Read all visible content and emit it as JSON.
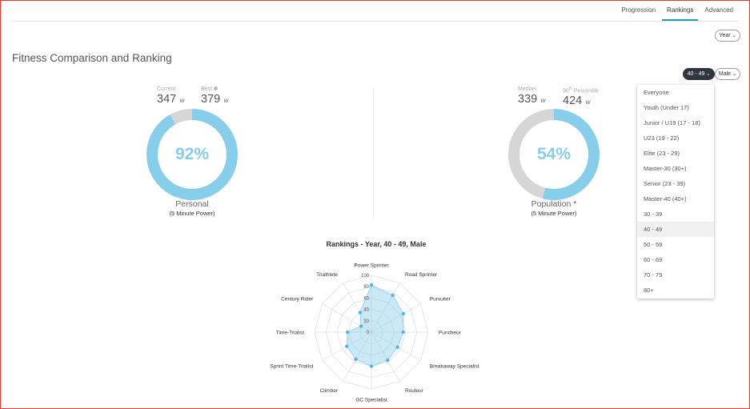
{
  "nav": {
    "tabs": [
      {
        "label": "Progression"
      },
      {
        "label": "Rankings"
      },
      {
        "label": "Advanced"
      }
    ]
  },
  "filters": {
    "year": "Year",
    "age_group": "40 - 49",
    "gender": "Male"
  },
  "page_title": "Fitness Comparison and Ranking",
  "personal": {
    "current_label": "Current",
    "current_value": "347",
    "best_label": "Best",
    "best_value": "379",
    "unit": "w",
    "percent": "92%",
    "fill_fraction": 0.92,
    "title": "Personal",
    "subtitle": "(5 Minute Power)"
  },
  "population": {
    "median_label": "Median",
    "median_value": "339",
    "p90_label_pre": "90",
    "p90_label_sup": "th",
    "p90_label_post": " Percentile",
    "p90_value": "424",
    "unit": "w",
    "percent": "54%",
    "fill_fraction": 0.54,
    "title": "Population *",
    "subtitle": "(5 Minute Power)"
  },
  "colors": {
    "accent": "#87ceeb",
    "track": "#d6d6d6",
    "tab_underline": "#17a2b8"
  },
  "age_dropdown": {
    "selected_index": 9,
    "options": [
      "Everyone",
      "Youth (Under 17)",
      "Junior / U19 (17 - 18)",
      "U23 (19 - 22)",
      "Elite (23 - 29)",
      "Master-30 (30+)",
      "Senior (23 - 39)",
      "Master-40 (40+)",
      "30 - 39",
      "40 - 49",
      "50 - 59",
      "60 - 69",
      "70 - 79",
      "80+"
    ]
  },
  "chart_data": {
    "type": "radar",
    "title": "Rankings - Year, 40 - 49, Male",
    "categories": [
      "Power Sprinter",
      "Road Sprinter",
      "Pursuiter",
      "Puncheur",
      "Breakaway Specialist",
      "Rouleur",
      "GC Specialist",
      "Climber",
      "Sprint Time-Trialist",
      "Time-Trialist",
      "Century Rider",
      "Triathlete"
    ],
    "values": [
      83,
      75,
      65,
      56,
      53,
      57,
      60,
      55,
      50,
      42,
      21,
      40
    ],
    "rlim": [
      0,
      100
    ],
    "ticks": [
      "0",
      "20",
      "40",
      "60",
      "80",
      "100"
    ],
    "grid": true
  }
}
